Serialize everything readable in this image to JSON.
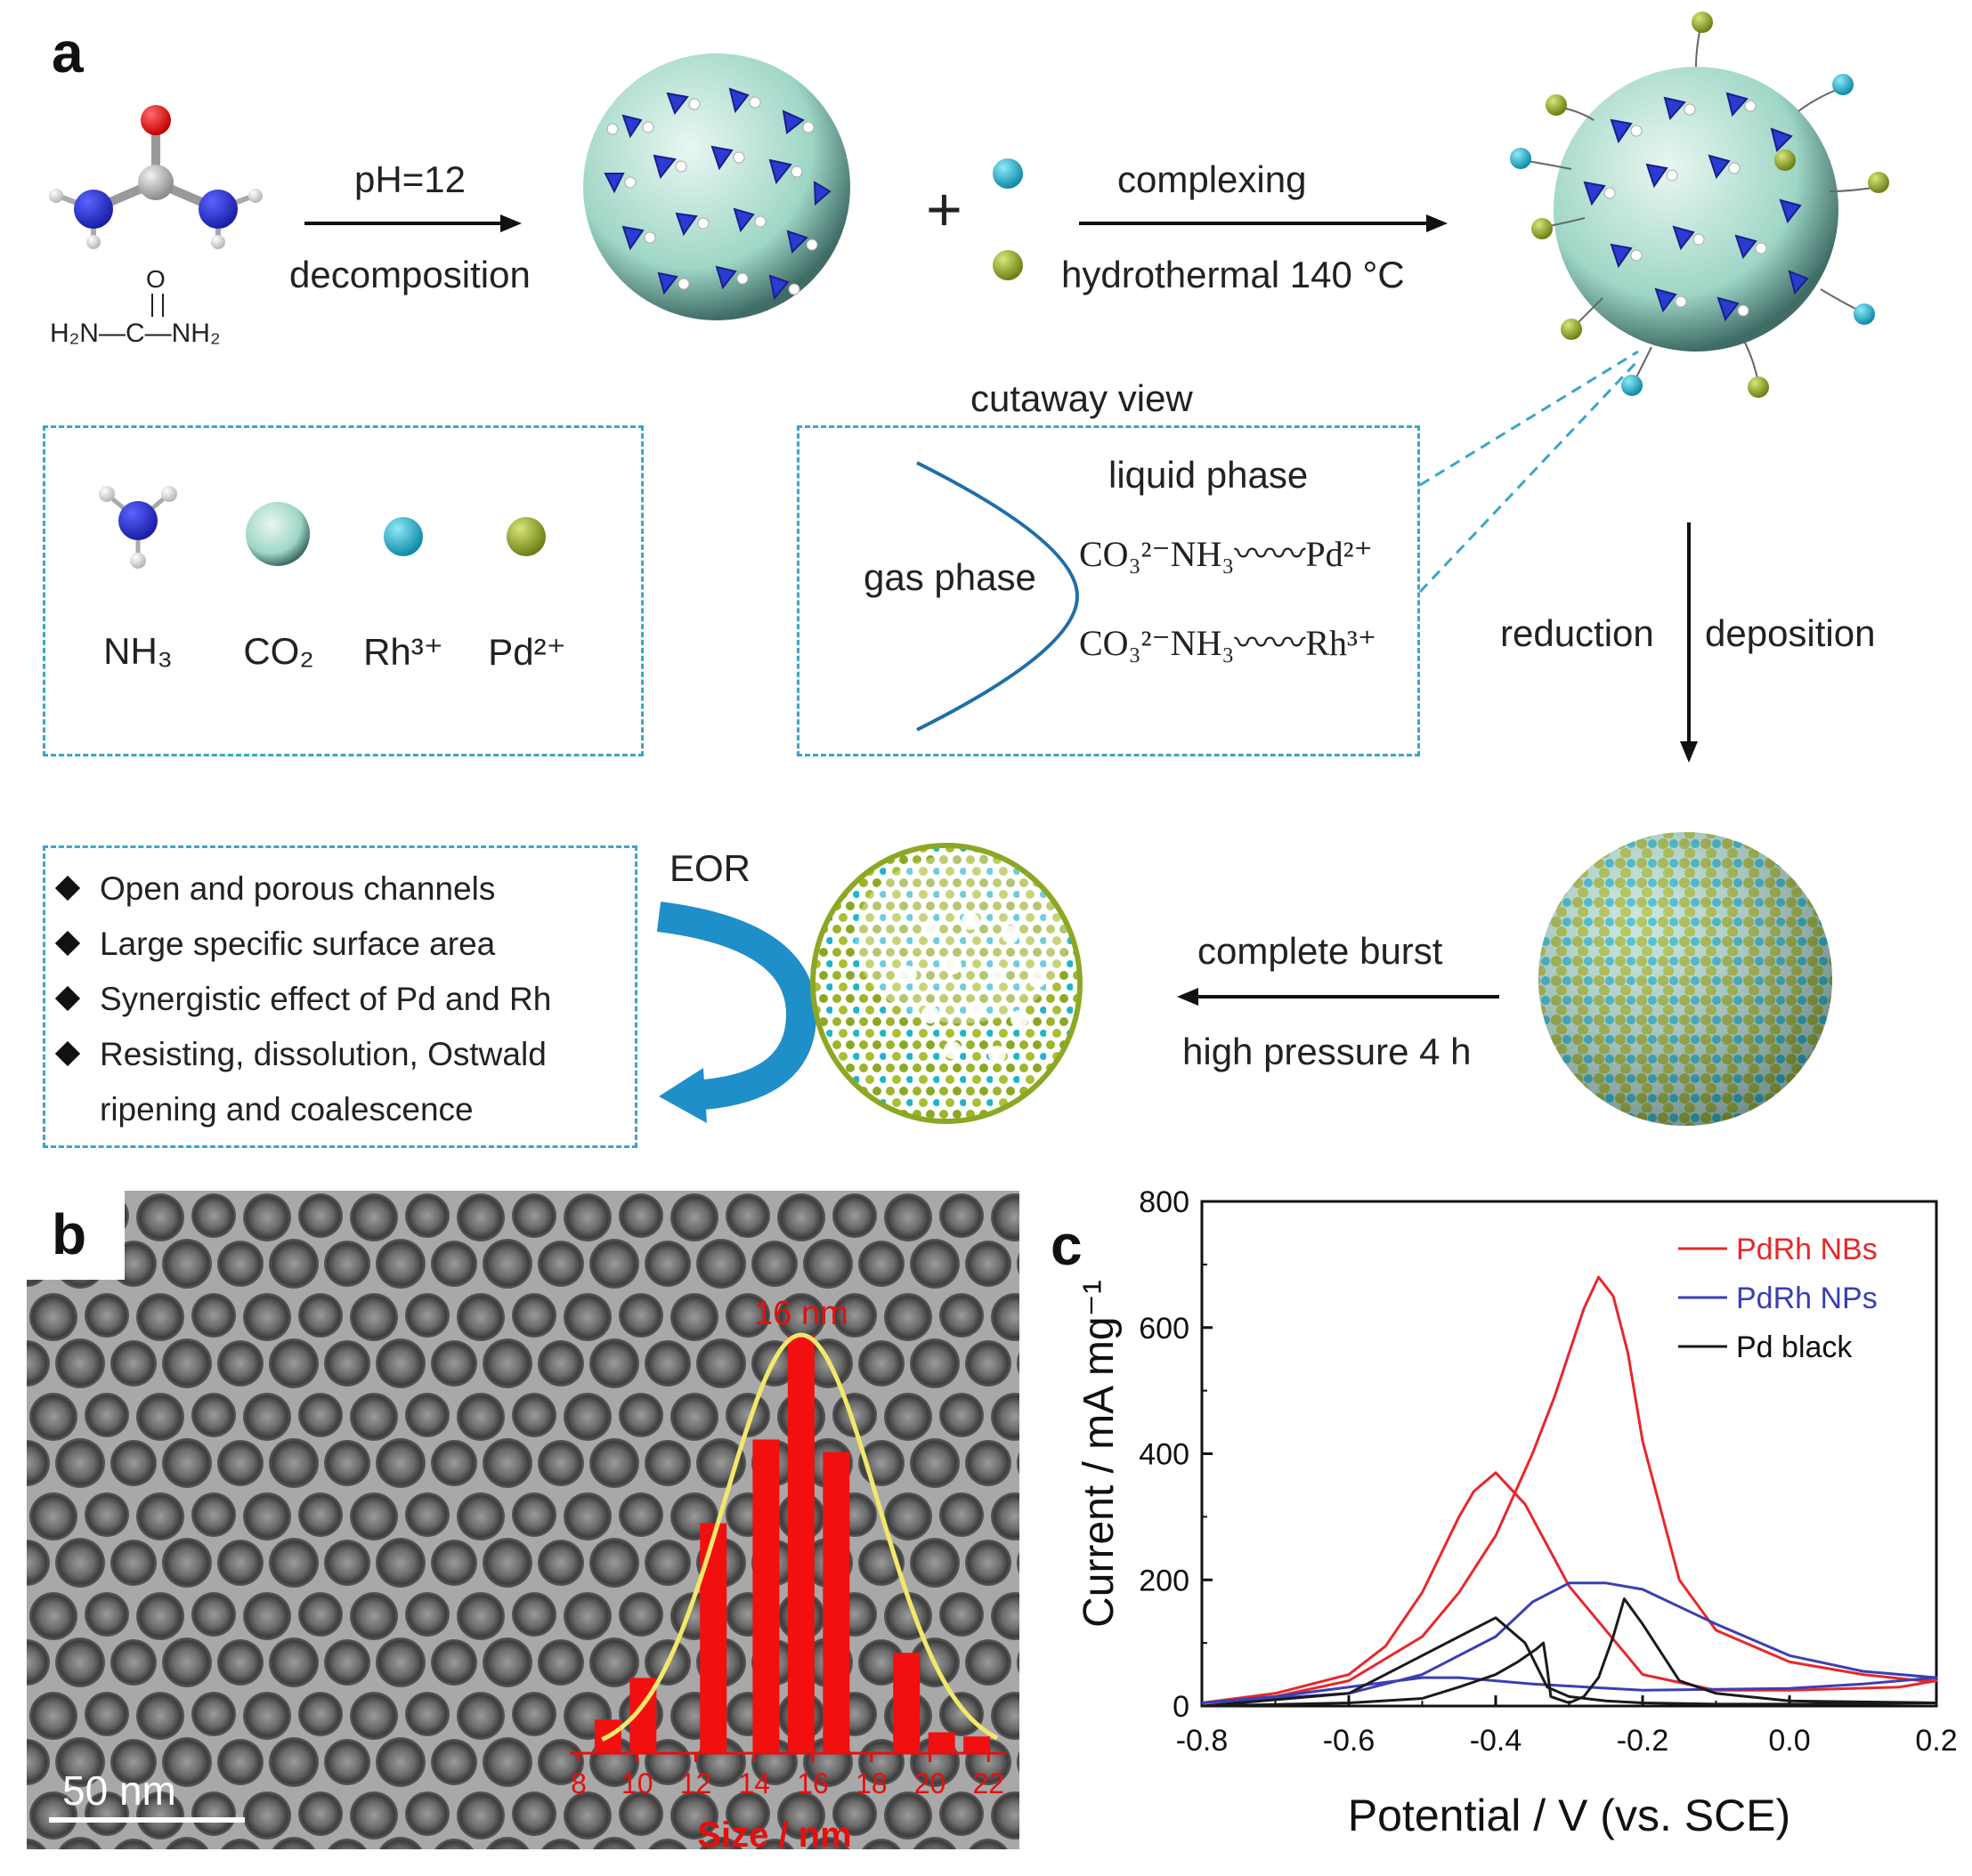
{
  "panels": {
    "a": "a",
    "b": "b",
    "c": "c"
  },
  "scheme": {
    "urea_formula": "H₂N—C—NH₂",
    "urea_o": "O",
    "step1_top": "pH=12",
    "step1_bottom": "decomposition",
    "plus": "+",
    "step2_top": "complexing",
    "step2_bottom": "hydrothermal 140 °C",
    "cutaway_title": "cutaway view",
    "liquid_phase": "liquid phase",
    "gas_phase": "gas phase",
    "pd_line": "CO₃²⁻NH₃〰〰Pd²⁺",
    "rh_line": "CO₃²⁻NH₃〰〰Rh³⁺",
    "reduction": "reduction",
    "deposition": "deposition",
    "burst_top": "complete burst",
    "burst_bottom": "high pressure 4 h",
    "eor": "EOR"
  },
  "legend": [
    {
      "label": "NH₃",
      "icon": "ammonia-molecule"
    },
    {
      "label": "CO₂",
      "icon": "co2-bubble",
      "color": "#bfe8dd"
    },
    {
      "label": "Rh³⁺",
      "icon": "rh-ion",
      "color": "#1fb3cf"
    },
    {
      "label": "Pd²⁺",
      "icon": "pd-ion",
      "color": "#9aae2a"
    }
  ],
  "features": [
    "Open and porous channels",
    "Large specific surface area",
    "Synergistic effect of Pd and Rh",
    "Resisting,  dissolution,  Ostwald",
    "ripening and coalescence"
  ],
  "tem": {
    "scale_bar": "50 nm",
    "peak_label": "16 nm",
    "hist_xlabel": "Size / nm",
    "hist_ticks": [
      "8",
      "10",
      "12",
      "14",
      "16",
      "18",
      "20",
      "22"
    ],
    "hist_sizes": [
      9,
      10.2,
      12.6,
      14.4,
      15.6,
      16.8,
      19.2,
      20.4,
      21.6
    ],
    "hist_values": [
      0.08,
      0.18,
      0.55,
      0.75,
      1.0,
      0.72,
      0.24,
      0.05,
      0.04
    ]
  },
  "chart_data": {
    "type": "line",
    "xlabel": "Potential / V (vs. SCE)",
    "ylabel": "Current / mA mg⁻¹",
    "xlim": [
      -0.8,
      0.2
    ],
    "ylim": [
      0,
      800
    ],
    "xticks": [
      "-0.8",
      "-0.6",
      "-0.4",
      "-0.2",
      "0.0",
      "0.2"
    ],
    "yticks": [
      "0",
      "200",
      "400",
      "600",
      "800"
    ],
    "legend_position": "top-right",
    "series": [
      {
        "name": "PdRh NBs",
        "color": "#e8272b",
        "x": [
          -0.8,
          -0.7,
          -0.6,
          -0.5,
          -0.45,
          -0.4,
          -0.35,
          -0.32,
          -0.3,
          -0.28,
          -0.26,
          -0.24,
          -0.22,
          -0.2,
          -0.15,
          -0.1,
          0.0,
          0.1,
          0.18,
          0.2,
          0.15,
          0.0,
          -0.1,
          -0.2,
          -0.3,
          -0.36,
          -0.4,
          -0.42,
          -0.43,
          -0.45,
          -0.5,
          -0.55,
          -0.6,
          -0.7,
          -0.8
        ],
        "y": [
          5,
          15,
          40,
          110,
          180,
          270,
          400,
          490,
          560,
          630,
          680,
          650,
          560,
          420,
          200,
          120,
          70,
          50,
          40,
          40,
          30,
          25,
          25,
          50,
          190,
          320,
          370,
          350,
          340,
          300,
          180,
          95,
          50,
          20,
          5
        ]
      },
      {
        "name": "PdRh NPs",
        "color": "#3a3fb4",
        "x": [
          -0.8,
          -0.6,
          -0.5,
          -0.4,
          -0.35,
          -0.3,
          -0.25,
          -0.2,
          -0.1,
          0.0,
          0.1,
          0.2,
          0.1,
          0.0,
          -0.2,
          -0.35,
          -0.45,
          -0.5,
          -0.6,
          -0.7,
          -0.8
        ],
        "y": [
          5,
          20,
          50,
          110,
          165,
          195,
          195,
          185,
          130,
          80,
          55,
          45,
          35,
          28,
          25,
          35,
          45,
          45,
          30,
          15,
          5
        ]
      },
      {
        "name": "Pd black",
        "color": "#1a1a1a",
        "x": [
          -0.8,
          -0.6,
          -0.5,
          -0.45,
          -0.4,
          -0.37,
          -0.345,
          -0.335,
          -0.33,
          -0.325,
          -0.3,
          -0.28,
          -0.26,
          -0.24,
          -0.225,
          -0.2,
          -0.15,
          -0.1,
          0.0,
          0.2,
          0.0,
          -0.1,
          -0.2,
          -0.25,
          -0.3,
          -0.33,
          -0.36,
          -0.4,
          -0.5,
          -0.6,
          -0.8
        ],
        "y": [
          0,
          5,
          12,
          30,
          50,
          70,
          90,
          100,
          60,
          15,
          5,
          15,
          45,
          110,
          170,
          130,
          40,
          20,
          8,
          5,
          3,
          3,
          5,
          8,
          15,
          30,
          100,
          140,
          80,
          20,
          0
        ]
      }
    ]
  }
}
